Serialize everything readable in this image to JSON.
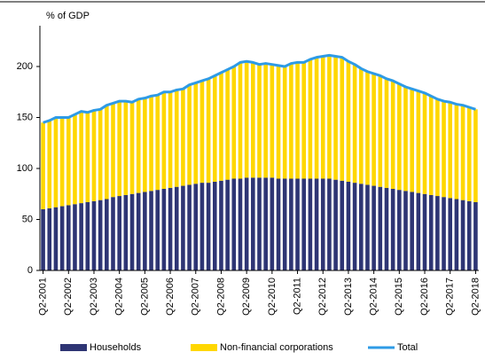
{
  "chart_data": {
    "type": "bar",
    "stacked": true,
    "ylabel": "% of GDP",
    "categories": [
      "Q2-2001",
      null,
      null,
      null,
      "Q2-2002",
      null,
      null,
      null,
      "Q2-2003",
      null,
      null,
      null,
      "Q2-2004",
      null,
      null,
      null,
      "Q2-2005",
      null,
      null,
      null,
      "Q2-2006",
      null,
      null,
      null,
      "Q2-2007",
      null,
      null,
      null,
      "Q2-2008",
      null,
      null,
      null,
      "Q2-2009",
      null,
      null,
      null,
      "Q2-2010",
      null,
      null,
      null,
      "Q2-2011",
      null,
      null,
      null,
      "Q2-2012",
      null,
      null,
      null,
      "Q2-2013",
      null,
      null,
      null,
      "Q2-2014",
      null,
      null,
      null,
      "Q2-2015",
      null,
      null,
      null,
      "Q2-2016",
      null,
      null,
      null,
      "Q2-2017",
      null,
      null,
      null,
      "Q2-2018"
    ],
    "series": [
      {
        "name": "Households",
        "kind": "bar",
        "color": "#2e3574",
        "values": [
          60,
          61,
          62,
          63,
          64,
          65,
          66,
          67,
          68,
          69,
          70,
          72,
          73,
          74,
          75,
          76,
          77,
          78,
          79,
          80,
          81,
          82,
          83,
          84,
          85,
          86,
          86,
          87,
          88,
          89,
          90,
          90,
          91,
          91,
          91,
          91,
          91,
          90,
          90,
          90,
          90,
          90,
          90,
          90,
          90,
          90,
          89,
          88,
          87,
          86,
          85,
          84,
          83,
          82,
          81,
          80,
          79,
          78,
          77,
          76,
          75,
          74,
          73,
          72,
          71,
          70,
          69,
          68,
          67
        ]
      },
      {
        "name": "Non-financial corporations",
        "kind": "bar",
        "color": "#ffd700",
        "values": [
          85,
          86,
          88,
          87,
          86,
          88,
          90,
          88,
          89,
          89,
          92,
          92,
          93,
          92,
          90,
          92,
          92,
          93,
          93,
          95,
          94,
          95,
          95,
          98,
          99,
          100,
          102,
          104,
          106,
          108,
          110,
          114,
          114,
          113,
          111,
          112,
          111,
          111,
          110,
          113,
          114,
          114,
          117,
          119,
          120,
          121,
          121,
          121,
          118,
          116,
          113,
          111,
          110,
          109,
          107,
          106,
          104,
          102,
          101,
          100,
          99,
          97,
          95,
          94,
          94,
          93,
          93,
          92,
          91
        ]
      },
      {
        "name": "Total",
        "kind": "line",
        "color": "#2e9be6",
        "values": [
          145,
          147,
          150,
          150,
          150,
          153,
          156,
          155,
          157,
          158,
          162,
          164,
          166,
          166,
          165,
          168,
          169,
          171,
          172,
          175,
          175,
          177,
          178,
          182,
          184,
          186,
          188,
          191,
          194,
          197,
          200,
          204,
          205,
          204,
          202,
          203,
          202,
          201,
          200,
          203,
          204,
          204,
          207,
          209,
          210,
          211,
          210,
          209,
          205,
          202,
          198,
          195,
          193,
          191,
          188,
          186,
          183,
          180,
          178,
          176,
          174,
          171,
          168,
          166,
          165,
          163,
          162,
          160,
          158
        ]
      }
    ],
    "ylim": [
      0,
      240
    ],
    "yticks": [
      0,
      50,
      100,
      150,
      200
    ],
    "grid": false
  }
}
